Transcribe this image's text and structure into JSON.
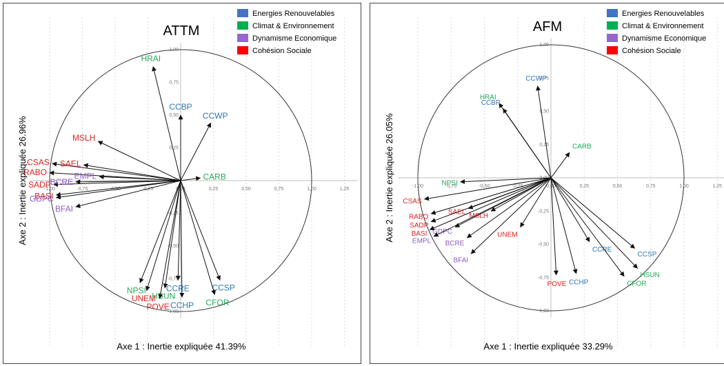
{
  "colors": {
    "energies": "#4472C4",
    "climat": "#00B050",
    "dynamisme": "#9966CC",
    "cohesion": "#FF0000",
    "label_blue": "#2E75B6",
    "label_green": "#21A85A",
    "label_purple": "#8E5CC2",
    "label_red": "#E02020"
  },
  "legend": [
    {
      "label": "Energies Renouvelables",
      "group": "energies"
    },
    {
      "label": "Climat & Environnement",
      "group": "climat"
    },
    {
      "label": "Dynamisme Economique",
      "group": "dynamisme"
    },
    {
      "label": "Cohésion Sociale",
      "group": "cohesion"
    }
  ],
  "chart_data": [
    {
      "type": "scatter",
      "title": "ATTM",
      "xlabel": "Axe 1 : Inertie expliquée 41.39%",
      "ylabel": "Axe 2 : Inertie expliquée 26.96%",
      "xlim": [
        -1.0,
        1.25
      ],
      "ylim": [
        -1.0,
        1.0
      ],
      "x_ticks": [
        "-1,00",
        "-0,75",
        "-0,50",
        "-0,25",
        "0,00",
        "0,25",
        "0,50",
        "0,75",
        "1,00",
        "1,25"
      ],
      "y_ticks": [
        "1,00",
        "0,75",
        "0,50",
        "0,25",
        "0,00",
        "-0,25",
        "-0,50",
        "-0,75",
        "-1,00"
      ],
      "vectors": [
        {
          "name": "HRAI",
          "x": -0.21,
          "y": 0.87,
          "group": "climat"
        },
        {
          "name": "CCBP",
          "x": 0.0,
          "y": 0.5,
          "group": "energies"
        },
        {
          "name": "CCWP",
          "x": 0.23,
          "y": 0.44,
          "group": "energies"
        },
        {
          "name": "MSLH",
          "x": -0.63,
          "y": 0.3,
          "group": "cohesion"
        },
        {
          "name": "SAEL",
          "x": -0.74,
          "y": 0.12,
          "group": "cohesion"
        },
        {
          "name": "CSAS",
          "x": -0.98,
          "y": 0.13,
          "group": "cohesion"
        },
        {
          "name": "RABO",
          "x": -1.0,
          "y": 0.06,
          "group": "cohesion"
        },
        {
          "name": "EMPL",
          "x": -0.62,
          "y": 0.03,
          "group": "dynamisme"
        },
        {
          "name": "SADP",
          "x": -0.97,
          "y": -0.03,
          "group": "cohesion"
        },
        {
          "name": "BCRE",
          "x": -0.8,
          "y": -0.01,
          "group": "dynamisme"
        },
        {
          "name": "BASI",
          "x": -0.95,
          "y": -0.11,
          "group": "cohesion"
        },
        {
          "name": "GDPC",
          "x": -0.95,
          "y": -0.13,
          "group": "dynamisme"
        },
        {
          "name": "BFAI",
          "x": -0.8,
          "y": -0.2,
          "group": "dynamisme"
        },
        {
          "name": "CARB",
          "x": 0.15,
          "y": 0.02,
          "group": "climat"
        },
        {
          "name": "CCSP",
          "x": 0.3,
          "y": -0.76,
          "group": "energies"
        },
        {
          "name": "CFOR",
          "x": 0.26,
          "y": -0.87,
          "group": "climat"
        },
        {
          "name": "CCRE",
          "x": -0.02,
          "y": -0.76,
          "group": "energies"
        },
        {
          "name": "CCHP",
          "x": 0.01,
          "y": -0.89,
          "group": "energies"
        },
        {
          "name": "HSUN",
          "x": -0.12,
          "y": -0.82,
          "group": "climat"
        },
        {
          "name": "NPSI",
          "x": -0.31,
          "y": -0.78,
          "group": "climat"
        },
        {
          "name": "UNEM",
          "x": -0.26,
          "y": -0.84,
          "group": "cohesion"
        },
        {
          "name": "POVE",
          "x": -0.16,
          "y": -0.9,
          "group": "cohesion"
        }
      ]
    },
    {
      "type": "scatter",
      "title": "AFM",
      "xlabel": "Axe 1 : Inertie expliquée 33.29%",
      "ylabel": "Axe 2 : Inertie expliquée 26.05%",
      "xlim": [
        -1.0,
        1.25
      ],
      "ylim": [
        -1.0,
        1.0
      ],
      "x_ticks": [
        "-1,00",
        "-0,75",
        "-0,50",
        "-0,25",
        "0,00",
        "0,25",
        "0,50",
        "0,75",
        "1,00",
        "1,25"
      ],
      "y_ticks": [
        "1,00",
        "0,75",
        "0,50",
        "0,25",
        "0,00",
        "-0,25",
        "-0,50",
        "-0,75",
        "-1,00"
      ],
      "vectors": [
        {
          "name": "CCWP",
          "x": -0.1,
          "y": 0.69,
          "group": "energies"
        },
        {
          "name": "HRAI",
          "x": -0.39,
          "y": 0.56,
          "group": "climat"
        },
        {
          "name": "CCBP",
          "x": -0.36,
          "y": 0.52,
          "group": "energies"
        },
        {
          "name": "CARB",
          "x": 0.14,
          "y": 0.19,
          "group": "climat"
        },
        {
          "name": "NPSI",
          "x": -0.68,
          "y": -0.03,
          "group": "climat"
        },
        {
          "name": "CSAS",
          "x": -0.95,
          "y": -0.16,
          "group": "cohesion"
        },
        {
          "name": "SAEL",
          "x": -0.62,
          "y": -0.23,
          "group": "cohesion"
        },
        {
          "name": "MSLH",
          "x": -0.45,
          "y": -0.25,
          "group": "cohesion"
        },
        {
          "name": "RABO",
          "x": -0.9,
          "y": -0.27,
          "group": "cohesion"
        },
        {
          "name": "UNEM",
          "x": -0.23,
          "y": -0.37,
          "group": "cohesion"
        },
        {
          "name": "SADP",
          "x": -0.9,
          "y": -0.33,
          "group": "cohesion"
        },
        {
          "name": "GDPC",
          "x": -0.72,
          "y": -0.37,
          "group": "dynamisme"
        },
        {
          "name": "BASI",
          "x": -0.91,
          "y": -0.39,
          "group": "cohesion"
        },
        {
          "name": "BCRE",
          "x": -0.63,
          "y": -0.45,
          "group": "dynamisme"
        },
        {
          "name": "EMPL",
          "x": -0.88,
          "y": -0.44,
          "group": "dynamisme"
        },
        {
          "name": "BFAI",
          "x": -0.6,
          "y": -0.57,
          "group": "dynamisme"
        },
        {
          "name": "CCRE",
          "x": 0.29,
          "y": -0.48,
          "group": "energies"
        },
        {
          "name": "CCSP",
          "x": 0.63,
          "y": -0.53,
          "group": "energies"
        },
        {
          "name": "HSUN",
          "x": 0.65,
          "y": -0.68,
          "group": "climat"
        },
        {
          "name": "CCHP",
          "x": 0.19,
          "y": -0.72,
          "group": "energies"
        },
        {
          "name": "CFOR",
          "x": 0.55,
          "y": -0.74,
          "group": "climat"
        },
        {
          "name": "POVE",
          "x": 0.04,
          "y": -0.73,
          "group": "cohesion"
        }
      ]
    }
  ]
}
